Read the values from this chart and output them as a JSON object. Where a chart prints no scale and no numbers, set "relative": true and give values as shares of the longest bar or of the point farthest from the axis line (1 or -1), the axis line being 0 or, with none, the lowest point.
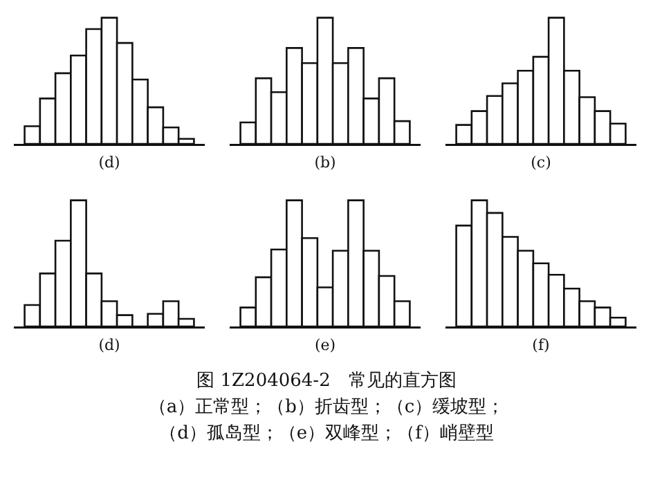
{
  "chart_data": [
    {
      "type": "bar",
      "relative": true,
      "xlabel": "(d)",
      "color": "#ffffff",
      "categories": [
        null,
        null,
        null,
        null,
        null,
        null,
        null,
        null,
        null,
        null,
        null
      ],
      "values": [
        0.14,
        0.36,
        0.56,
        0.7,
        0.91,
        1,
        0.8,
        0.51,
        0.29,
        0.13,
        0.04
      ]
    },
    {
      "type": "bar",
      "relative": true,
      "xlabel": "(b)",
      "color": "#ffffff",
      "categories": [
        null,
        null,
        null,
        null,
        null,
        null,
        null,
        null,
        null,
        null,
        null
      ],
      "values": [
        0.17,
        0.52,
        0.41,
        0.76,
        0.64,
        1,
        0.64,
        0.76,
        0.36,
        0.52,
        0.18
      ]
    },
    {
      "type": "bar",
      "relative": true,
      "xlabel": "(c)",
      "color": "#ffffff",
      "categories": [
        null,
        null,
        null,
        null,
        null,
        null,
        null,
        null,
        null,
        null,
        null
      ],
      "values": [
        0.15,
        0.26,
        0.38,
        0.48,
        0.58,
        0.69,
        1,
        0.58,
        0.37,
        0.26,
        0.16
      ]
    },
    {
      "type": "bar",
      "relative": true,
      "xlabel": "(d)",
      "color": "#ffffff",
      "categories": [
        null,
        null,
        null,
        null,
        null,
        null,
        null,
        null,
        null,
        null,
        null
      ],
      "values": [
        0.17,
        0.42,
        0.68,
        1,
        0.42,
        0.2,
        0.09,
        0,
        0.1,
        0.2,
        0.06
      ]
    },
    {
      "type": "bar",
      "relative": true,
      "xlabel": "(e)",
      "color": "#ffffff",
      "categories": [
        null,
        null,
        null,
        null,
        null,
        null,
        null,
        null,
        null,
        null,
        null
      ],
      "values": [
        0.15,
        0.39,
        0.61,
        1,
        0.7,
        0.31,
        0.6,
        1,
        0.6,
        0.4,
        0.2
      ]
    },
    {
      "type": "bar",
      "relative": true,
      "xlabel": "(f)",
      "color": "#ffffff",
      "categories": [
        null,
        null,
        null,
        null,
        null,
        null,
        null,
        null,
        null,
        null,
        null
      ],
      "values": [
        0.8,
        1,
        0.9,
        0.71,
        0.6,
        0.5,
        0.41,
        0.3,
        0.2,
        0.15,
        0.07
      ],
      "annotations": [
        "图 1Z204064-2　常见的直方图",
        "（a）正常型；（b）折齿型；（c）缓坡型；",
        "（d）孤岛型；（e）双峰型；（f）峭壁型"
      ]
    }
  ]
}
